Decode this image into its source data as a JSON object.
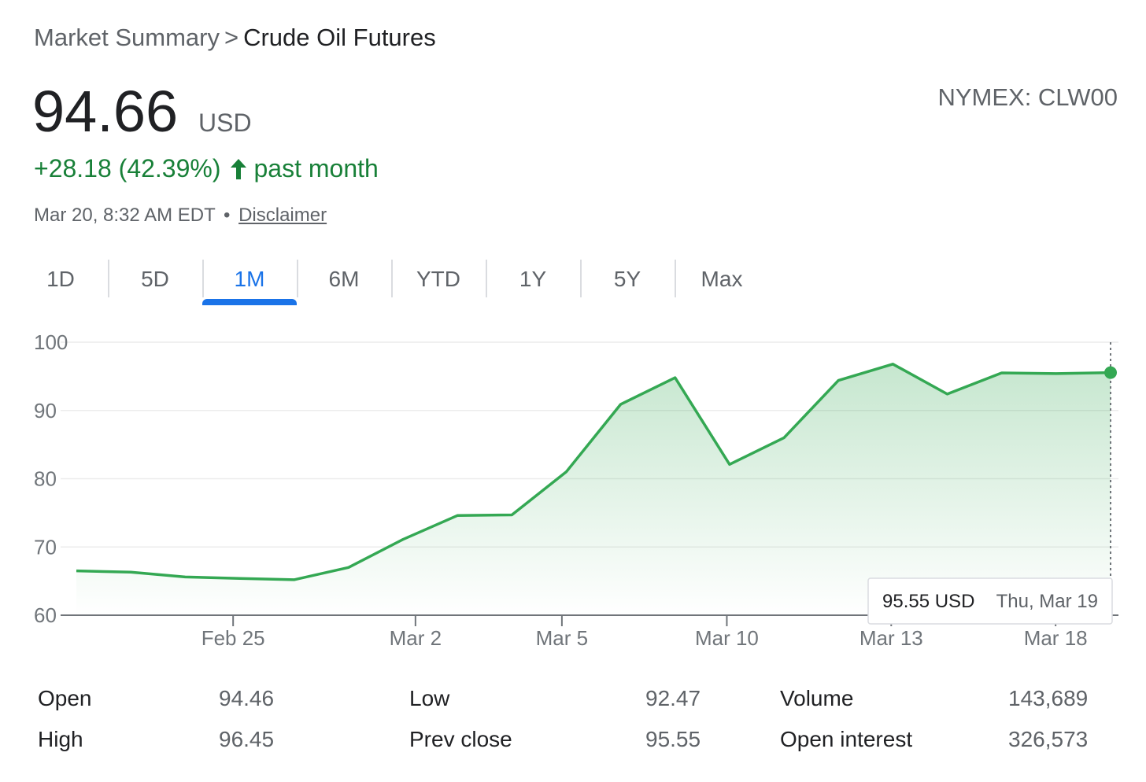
{
  "breadcrumb": {
    "root": "Market Summary",
    "separator": ">",
    "current": "Crude Oil Futures"
  },
  "quote": {
    "price": "94.66",
    "currency": "USD",
    "exchange": "NYMEX: CLW00",
    "change": "+28.18 (42.39%)",
    "change_period": "past month",
    "timestamp": "Mar 20, 8:32 AM EDT",
    "separator_dot": "•",
    "disclaimer_label": "Disclaimer"
  },
  "range_tabs": [
    {
      "label": "1D",
      "active": false
    },
    {
      "label": "5D",
      "active": false
    },
    {
      "label": "1M",
      "active": true
    },
    {
      "label": "6M",
      "active": false
    },
    {
      "label": "YTD",
      "active": false
    },
    {
      "label": "1Y",
      "active": false
    },
    {
      "label": "5Y",
      "active": false
    },
    {
      "label": "Max",
      "active": false
    }
  ],
  "chart_data": {
    "type": "area",
    "ylim": [
      60,
      100
    ],
    "y_ticks": [
      60,
      70,
      80,
      90,
      100
    ],
    "x_ticks": [
      {
        "label": "Feb 25",
        "x": 2.88
      },
      {
        "label": "Mar 2",
        "x": 6.23
      },
      {
        "label": "Mar 5",
        "x": 8.92
      },
      {
        "label": "Mar 10",
        "x": 11.95
      },
      {
        "label": "Mar 13",
        "x": 14.97
      },
      {
        "label": "Mar 18",
        "x": 17.99
      }
    ],
    "xlim": [
      0,
      19.6
    ],
    "x": [
      0,
      1,
      2,
      3,
      4,
      5,
      6,
      7,
      8,
      9,
      10,
      11,
      12,
      13,
      14,
      15,
      16,
      17,
      18,
      19
    ],
    "values": [
      66.5,
      66.3,
      65.6,
      65.4,
      65.2,
      67.0,
      71.1,
      74.6,
      74.7,
      81.0,
      90.9,
      94.8,
      82.1,
      86.0,
      94.4,
      96.8,
      92.4,
      95.5,
      95.4,
      95.55
    ],
    "grid": true,
    "color": "#34a853",
    "tooltip": {
      "value": "95.55 USD",
      "date": "Thu, Mar 19"
    }
  },
  "stats": [
    {
      "label": "Open",
      "value": "94.46"
    },
    {
      "label": "High",
      "value": "96.45"
    },
    {
      "label": "Low",
      "value": "92.47"
    },
    {
      "label": "Prev close",
      "value": "95.55"
    },
    {
      "label": "Volume",
      "value": "143,689"
    },
    {
      "label": "Open interest",
      "value": "326,573"
    }
  ]
}
